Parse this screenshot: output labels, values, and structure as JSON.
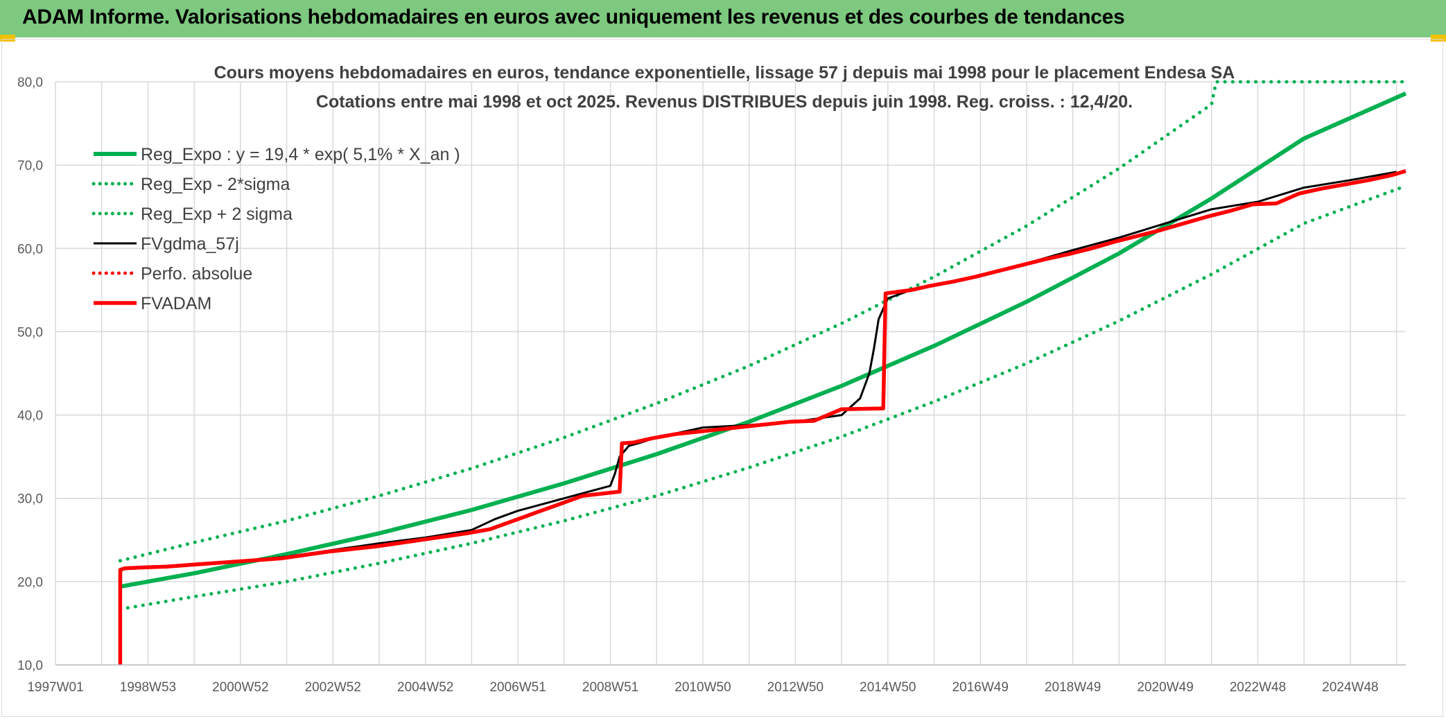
{
  "header": {
    "banner_title": "ADAM Informe. Valorisations hebdomadaires en euros avec uniquement les revenus et des courbes de tendances"
  },
  "colors": {
    "banner_bg": "#7dc97f",
    "green": "#00b050",
    "red": "#ff0000",
    "black": "#000000",
    "grid": "#d9d9d9",
    "accent_corner": "#f2c200"
  },
  "chart_data": {
    "type": "line",
    "title": "Cours moyens hebdomadaires en euros, tendance exponentielle, lissage 57 j depuis mai 1998 pour le placement Endesa SA",
    "subtitle": "Cotations entre mai 1998 et oct 2025. Revenus DISTRIBUES depuis juin 1998. Reg. croiss. : 12,4/20.",
    "xlabel": "",
    "ylabel": "",
    "ylim": [
      10,
      80
    ],
    "xlim": [
      1997.0,
      2026.2
    ],
    "y_ticks": [
      "10,0",
      "20,0",
      "30,0",
      "40,0",
      "50,0",
      "60,0",
      "70,0",
      "80,0"
    ],
    "y_tick_values": [
      10,
      20,
      30,
      40,
      50,
      60,
      70,
      80
    ],
    "x_ticks": [
      "1997W01",
      "1998W53",
      "2000W52",
      "2002W52",
      "2004W52",
      "2006W51",
      "2008W51",
      "2010W50",
      "2012W50",
      "2014W50",
      "2016W49",
      "2018W49",
      "2020W49",
      "2022W48",
      "2024W48"
    ],
    "x_tick_values": [
      1997.0,
      1999.0,
      2001.0,
      2003.0,
      2005.0,
      2007.0,
      2009.0,
      2011.0,
      2013.0,
      2015.0,
      2017.0,
      2019.0,
      2021.0,
      2023.0,
      2025.0
    ],
    "grid": "horizontal and vertical",
    "legend_position": "top-left",
    "series": [
      {
        "name": "Reg_Expo : y = 19,4 * exp( 5,1% *  X_an )",
        "style": "solid-thick",
        "color": "#00b050",
        "x": [
          1998.4,
          2000.0,
          2002.0,
          2004.0,
          2006.0,
          2008.0,
          2010.0,
          2012.0,
          2014.0,
          2016.0,
          2018.0,
          2020.0,
          2022.0,
          2024.0,
          2026.2
        ],
        "values": [
          19.4,
          21.0,
          23.3,
          25.8,
          28.6,
          31.8,
          35.3,
          39.2,
          43.5,
          48.3,
          53.6,
          59.4,
          66.0,
          73.2,
          78.6
        ]
      },
      {
        "name": "Reg_Exp - 2*sigma",
        "style": "dotted",
        "color": "#00b050",
        "x": [
          1998.4,
          2000.0,
          2002.0,
          2004.0,
          2006.0,
          2008.0,
          2010.0,
          2012.0,
          2014.0,
          2016.0,
          2018.0,
          2020.0,
          2022.0,
          2024.0,
          2026.2
        ],
        "values": [
          16.7,
          18.2,
          20.0,
          22.2,
          24.6,
          27.3,
          30.3,
          33.7,
          37.4,
          41.6,
          46.2,
          51.3,
          56.9,
          63.0,
          67.5
        ]
      },
      {
        "name": "Reg_Exp + 2 sigma",
        "style": "dotted",
        "color": "#00b050",
        "x": [
          1998.4,
          2000.0,
          2002.0,
          2004.0,
          2006.0,
          2008.0,
          2010.0,
          2012.0,
          2014.0,
          2016.0,
          2018.0,
          2020.0,
          2022.0,
          2022.1,
          2026.2
        ],
        "values": [
          22.5,
          24.7,
          27.3,
          30.3,
          33.6,
          37.3,
          41.4,
          45.9,
          51.0,
          56.6,
          62.7,
          69.6,
          77.3,
          80.0,
          80.0
        ]
      },
      {
        "name": "FVgdma_57j",
        "style": "solid",
        "color": "#000000",
        "x": [
          1998.4,
          1998.42,
          1999.0,
          2000.0,
          2001.0,
          2002.0,
          2003.0,
          2004.0,
          2005.0,
          2006.0,
          2006.5,
          2007.0,
          2008.0,
          2009.0,
          2009.1,
          2009.2,
          2009.4,
          2009.6,
          2010.0,
          2011.0,
          2012.0,
          2013.0,
          2014.0,
          2014.4,
          2014.6,
          2014.7,
          2014.8,
          2015.0,
          2015.5,
          2016.0,
          2017.0,
          2018.0,
          2019.0,
          2020.0,
          2021.0,
          2022.0,
          2023.0,
          2024.0,
          2025.0,
          2026.0
        ],
        "values": [
          10.0,
          21.5,
          21.7,
          22.0,
          22.4,
          23.0,
          23.8,
          24.6,
          25.3,
          26.2,
          27.5,
          28.5,
          30.0,
          31.5,
          33.0,
          35.0,
          36.3,
          36.6,
          37.3,
          38.5,
          38.8,
          39.2,
          40.0,
          42.0,
          45.0,
          48.0,
          51.5,
          54.0,
          55.0,
          55.5,
          56.8,
          58.2,
          59.8,
          61.3,
          63.0,
          64.7,
          65.6,
          67.3,
          68.2,
          69.2
        ]
      },
      {
        "name": "Perfo. absolue",
        "style": "dotted",
        "color": "#ff0000",
        "x": [],
        "values": []
      },
      {
        "name": "FVADAM",
        "style": "solid-thick-step",
        "color": "#ff0000",
        "x": [
          1998.4,
          1998.4,
          1998.5,
          1998.9,
          1999.4,
          1999.9,
          2000.4,
          2000.9,
          2001.4,
          2001.9,
          2002.4,
          2002.9,
          2003.4,
          2003.9,
          2004.4,
          2004.9,
          2005.4,
          2005.9,
          2006.4,
          2006.9,
          2007.4,
          2007.9,
          2008.4,
          2009.2,
          2009.25,
          2009.5,
          2009.9,
          2010.4,
          2010.9,
          2011.4,
          2011.9,
          2012.4,
          2012.9,
          2013.4,
          2014.0,
          2014.9,
          2014.95,
          2015.5,
          2015.9,
          2016.4,
          2016.9,
          2017.4,
          2017.9,
          2018.4,
          2018.9,
          2019.4,
          2019.9,
          2020.4,
          2020.9,
          2021.4,
          2021.9,
          2022.4,
          2022.9,
          2023.4,
          2023.9,
          2024.4,
          2024.9,
          2025.4,
          2025.9,
          2026.2
        ],
        "values": [
          10.0,
          21.4,
          21.6,
          21.7,
          21.8,
          22.0,
          22.2,
          22.4,
          22.6,
          22.8,
          23.2,
          23.6,
          23.9,
          24.2,
          24.6,
          25.0,
          25.4,
          25.8,
          26.3,
          27.3,
          28.3,
          29.3,
          30.3,
          30.8,
          36.6,
          36.7,
          37.2,
          37.7,
          38.0,
          38.3,
          38.6,
          38.9,
          39.2,
          39.3,
          40.7,
          40.8,
          54.6,
          55.0,
          55.5,
          56.0,
          56.6,
          57.3,
          58.0,
          58.7,
          59.3,
          60.0,
          60.8,
          61.5,
          62.2,
          63.0,
          63.8,
          64.5,
          65.3,
          65.4,
          66.6,
          67.2,
          67.7,
          68.2,
          68.8,
          69.3
        ]
      }
    ]
  }
}
